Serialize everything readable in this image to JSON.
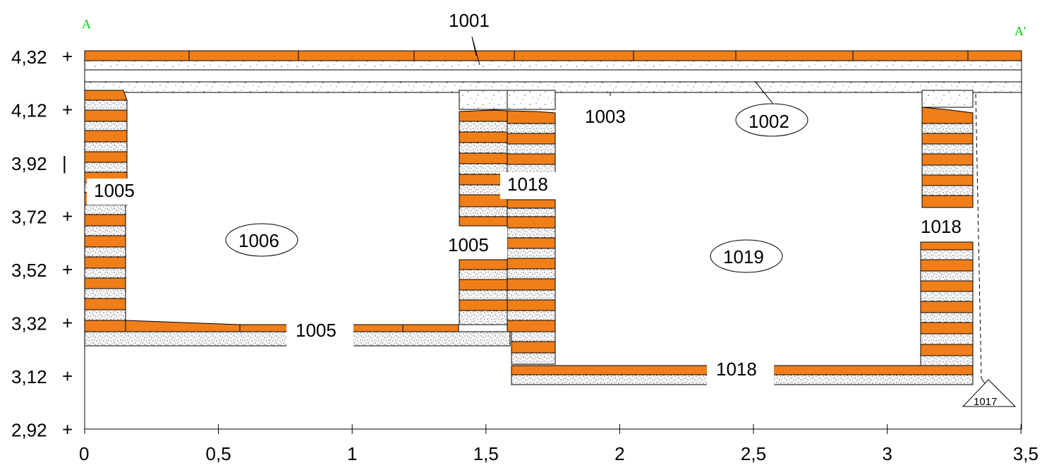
{
  "section": {
    "left_label": "A",
    "right_label": "A'",
    "colors": {
      "brick": "#f07f1a",
      "mortar": "#ffffff",
      "line": "#000000",
      "accent_label": "#00cc00"
    }
  },
  "axes": {
    "x_ticks": [
      "0",
      "0,5",
      "1",
      "1,5",
      "2",
      "2,5",
      "3",
      "3,5"
    ],
    "y_ticks": [
      "4,32",
      "4,12",
      "3,92",
      "3,72",
      "3,52",
      "3,32",
      "3,12",
      "2,92"
    ]
  },
  "units": {
    "u1001": "1001",
    "u1002": "1002",
    "u1003": "1003",
    "u1005_left": "1005",
    "u1005_mid": "1005",
    "u1005_floor": "1005",
    "u1006": "1006",
    "u1017": "1017",
    "u1018_mid": "1018",
    "u1018_right": "1018",
    "u1018_floor": "1018",
    "u1019": "1019"
  }
}
